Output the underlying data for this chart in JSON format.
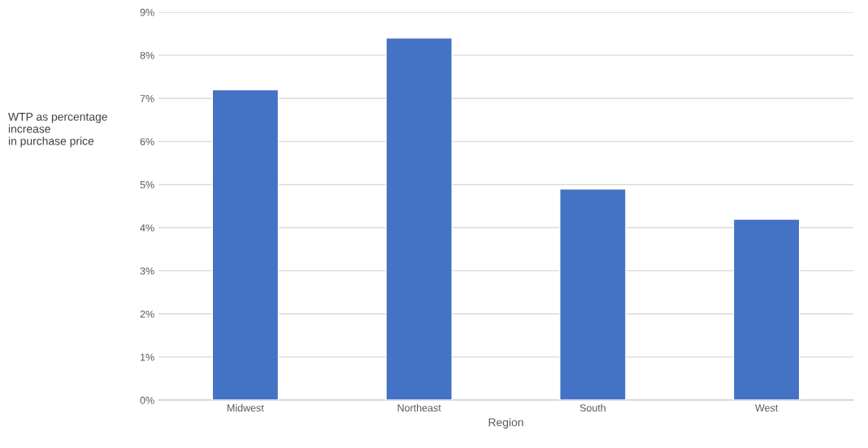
{
  "chart_data": {
    "type": "bar",
    "xlabel": "Region",
    "ylabel": "WTP as percentage\nincrease\nin purchase price",
    "categories": [
      "Midwest",
      "Northeast",
      "South",
      "West"
    ],
    "values": [
      7.2,
      8.4,
      4.9,
      4.2
    ],
    "color": "#4472c4",
    "ylim": [
      0,
      9
    ],
    "yticks": [
      {
        "value": 0,
        "label": "0%"
      },
      {
        "value": 1,
        "label": "1%"
      },
      {
        "value": 2,
        "label": "2%"
      },
      {
        "value": 3,
        "label": "3%"
      },
      {
        "value": 4,
        "label": "4%"
      },
      {
        "value": 5,
        "label": "5%"
      },
      {
        "value": 6,
        "label": "6%"
      },
      {
        "value": 7,
        "label": "7%"
      },
      {
        "value": 8,
        "label": "8%"
      },
      {
        "value": 9,
        "label": "9%"
      }
    ],
    "grid": "y"
  }
}
